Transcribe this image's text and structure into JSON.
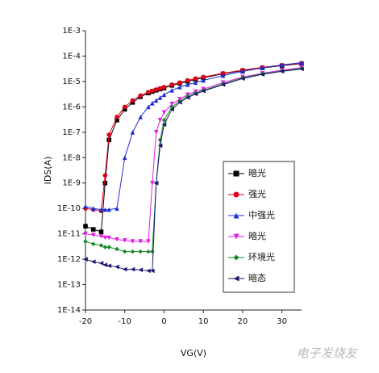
{
  "chart_data": {
    "type": "line",
    "xlabel": "VG(V)",
    "ylabel": "IDS(A)",
    "log_y": true,
    "legend": "lower right",
    "watermark": "电子发烧友",
    "xlim": [
      -20,
      35
    ],
    "xticks": [
      -20,
      -10,
      0,
      10,
      20,
      30
    ],
    "ylim": [
      1e-14,
      0.001
    ],
    "yticks": [
      {
        "value": 1e-14,
        "label": "1E-14"
      },
      {
        "value": 1e-13,
        "label": "1E-13"
      },
      {
        "value": 1e-12,
        "label": "1E-12"
      },
      {
        "value": 1e-11,
        "label": "1E-11"
      },
      {
        "value": 1e-10,
        "label": "1E-10"
      },
      {
        "value": 1e-09,
        "label": "1E-9"
      },
      {
        "value": 1e-08,
        "label": "1E-8"
      },
      {
        "value": 1e-07,
        "label": "1E-7"
      },
      {
        "value": 1e-06,
        "label": "1E-6"
      },
      {
        "value": 1e-05,
        "label": "1E-5"
      },
      {
        "value": 0.0001,
        "label": "1E-4"
      },
      {
        "value": 0.001,
        "label": "1E-3"
      }
    ],
    "x": [
      -20,
      -18,
      -16,
      -15,
      -14,
      -12,
      -10,
      -8,
      -6,
      -4,
      -3,
      -2,
      -1,
      0,
      2,
      4,
      6,
      8,
      10,
      15,
      20,
      25,
      30,
      35
    ],
    "series": [
      {
        "name": "暗光",
        "color": "#000000",
        "marker": "square",
        "values": [
          2e-11,
          1.5e-11,
          1.2e-11,
          1e-09,
          5e-08,
          3e-07,
          8e-07,
          1.5e-06,
          2.5e-06,
          3.5e-06,
          4e-06,
          4.5e-06,
          5e-06,
          5.5e-06,
          7e-06,
          8.5e-06,
          1e-05,
          1.2e-05,
          1.4e-05,
          2e-05,
          2.7e-05,
          3.4e-05,
          4.2e-05,
          5e-05
        ]
      },
      {
        "name": "强光",
        "color": "#e0001a",
        "marker": "circle",
        "values": [
          1e-10,
          9e-11,
          8e-11,
          2e-09,
          8e-08,
          4e-07,
          1e-06,
          1.8e-06,
          2.8e-06,
          3.8e-06,
          4.3e-06,
          4.8e-06,
          5.3e-06,
          6e-06,
          7.5e-06,
          9e-06,
          1.1e-05,
          1.3e-05,
          1.5e-05,
          2.1e-05,
          2.8e-05,
          3.6e-05,
          4.4e-05,
          5.2e-05
        ]
      },
      {
        "name": "中强光",
        "color": "#1f2fd6",
        "marker": "triangle-up",
        "values": [
          1.2e-10,
          1e-10,
          9e-11,
          9e-11,
          9e-11,
          1e-10,
          1e-08,
          1e-07,
          4e-07,
          1e-06,
          1.4e-06,
          1.8e-06,
          2.3e-06,
          3e-06,
          4.5e-06,
          6e-06,
          7.5e-06,
          9e-06,
          1.1e-05,
          1.7e-05,
          2.5e-05,
          3.4e-05,
          4.5e-05,
          5.5e-05
        ]
      },
      {
        "name": "暗光",
        "color": "#e020e0",
        "marker": "triangle-down",
        "values": [
          1e-11,
          9e-12,
          8e-12,
          7e-12,
          7e-12,
          6e-12,
          5.5e-12,
          5e-12,
          5e-12,
          5e-12,
          1e-09,
          1e-07,
          3e-07,
          6e-07,
          1.3e-06,
          2e-06,
          3e-06,
          4e-06,
          5e-06,
          9e-06,
          1.5e-05,
          2.1e-05,
          2.8e-05,
          3.5e-05
        ]
      },
      {
        "name": "环境光",
        "color": "#1a8a2a",
        "marker": "diamond",
        "values": [
          5e-12,
          4e-12,
          3.5e-12,
          3e-12,
          3e-12,
          2.5e-12,
          2e-12,
          2e-12,
          2e-12,
          2e-12,
          2e-12,
          1e-09,
          5e-08,
          3e-07,
          1e-06,
          1.7e-06,
          2.6e-06,
          3.5e-06,
          4.5e-06,
          8e-06,
          1.4e-05,
          2e-05,
          2.6e-05,
          3.3e-05
        ]
      },
      {
        "name": "暗态",
        "color": "#1a1a6e",
        "marker": "triangle-left",
        "values": [
          1e-12,
          8e-13,
          7e-13,
          6e-13,
          5.5e-13,
          5e-13,
          4e-13,
          4e-13,
          3.8e-13,
          3.5e-13,
          3.5e-13,
          1e-09,
          3e-08,
          2e-07,
          8e-07,
          1.5e-06,
          2.3e-06,
          3.2e-06,
          4.2e-06,
          7.5e-06,
          1.3e-05,
          1.9e-05,
          2.5e-05,
          3.1e-05
        ]
      }
    ]
  }
}
